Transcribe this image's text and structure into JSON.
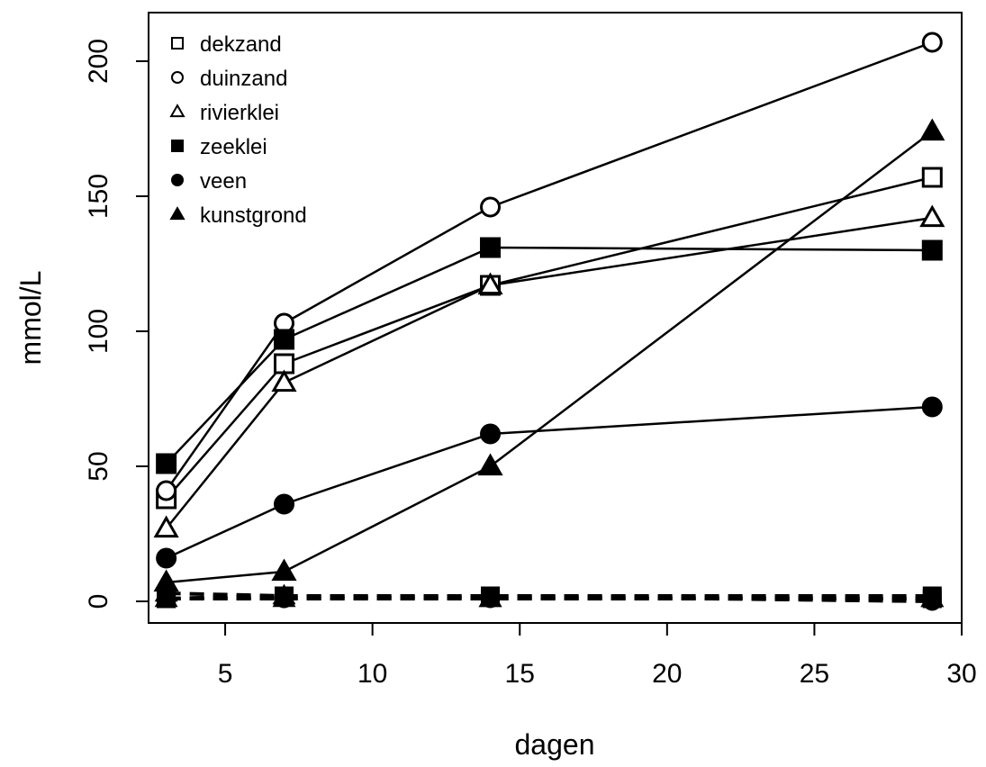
{
  "chart_data": {
    "type": "line",
    "xlabel": "dagen",
    "ylabel": "mmol/L",
    "xlim": [
      2.4,
      30
    ],
    "ylim": [
      -8,
      218
    ],
    "xticks": [
      5,
      10,
      15,
      20,
      25,
      30
    ],
    "yticks": [
      0,
      50,
      100,
      150,
      200
    ],
    "grid": false,
    "legend_position": "top-left",
    "series": [
      {
        "name": "dekzand",
        "marker": "square-open",
        "x": [
          3,
          7,
          14,
          29
        ],
        "y": [
          38,
          88,
          117,
          157
        ]
      },
      {
        "name": "duinzand",
        "marker": "circle-open",
        "x": [
          3,
          7,
          14,
          29
        ],
        "y": [
          41,
          103,
          146,
          207
        ]
      },
      {
        "name": "rivierklei",
        "marker": "triangle-open",
        "x": [
          3,
          7,
          14,
          29
        ],
        "y": [
          27,
          81,
          117,
          142
        ]
      },
      {
        "name": "zeeklei",
        "marker": "square-filled",
        "x": [
          3,
          7,
          14,
          29
        ],
        "y": [
          51,
          97,
          131,
          130
        ]
      },
      {
        "name": "veen",
        "marker": "circle-filled",
        "x": [
          3,
          7,
          14,
          29
        ],
        "y": [
          16,
          36,
          62,
          72
        ]
      },
      {
        "name": "kunstgrond",
        "marker": "triangle-filled",
        "x": [
          3,
          7,
          14,
          29
        ],
        "y": [
          7,
          11,
          50,
          174
        ]
      }
    ],
    "dashed_series": [
      {
        "marker": "square-open",
        "x": [
          3,
          7,
          14,
          29
        ],
        "y": [
          1,
          2,
          2,
          1
        ]
      },
      {
        "marker": "circle-open",
        "x": [
          3,
          7,
          14,
          29
        ],
        "y": [
          1,
          1,
          1,
          1
        ]
      },
      {
        "marker": "triangle-open",
        "x": [
          3,
          7,
          14,
          29
        ],
        "y": [
          1,
          1,
          1,
          1
        ]
      },
      {
        "marker": "square-filled",
        "x": [
          3,
          7,
          14,
          29
        ],
        "y": [
          1,
          2,
          2,
          2
        ]
      },
      {
        "marker": "circle-filled",
        "x": [
          3,
          7,
          14,
          29
        ],
        "y": [
          1,
          1,
          2,
          0
        ]
      },
      {
        "marker": "triangle-filled",
        "x": [
          3,
          7,
          14,
          29
        ],
        "y": [
          3,
          2,
          1,
          1
        ]
      }
    ]
  }
}
